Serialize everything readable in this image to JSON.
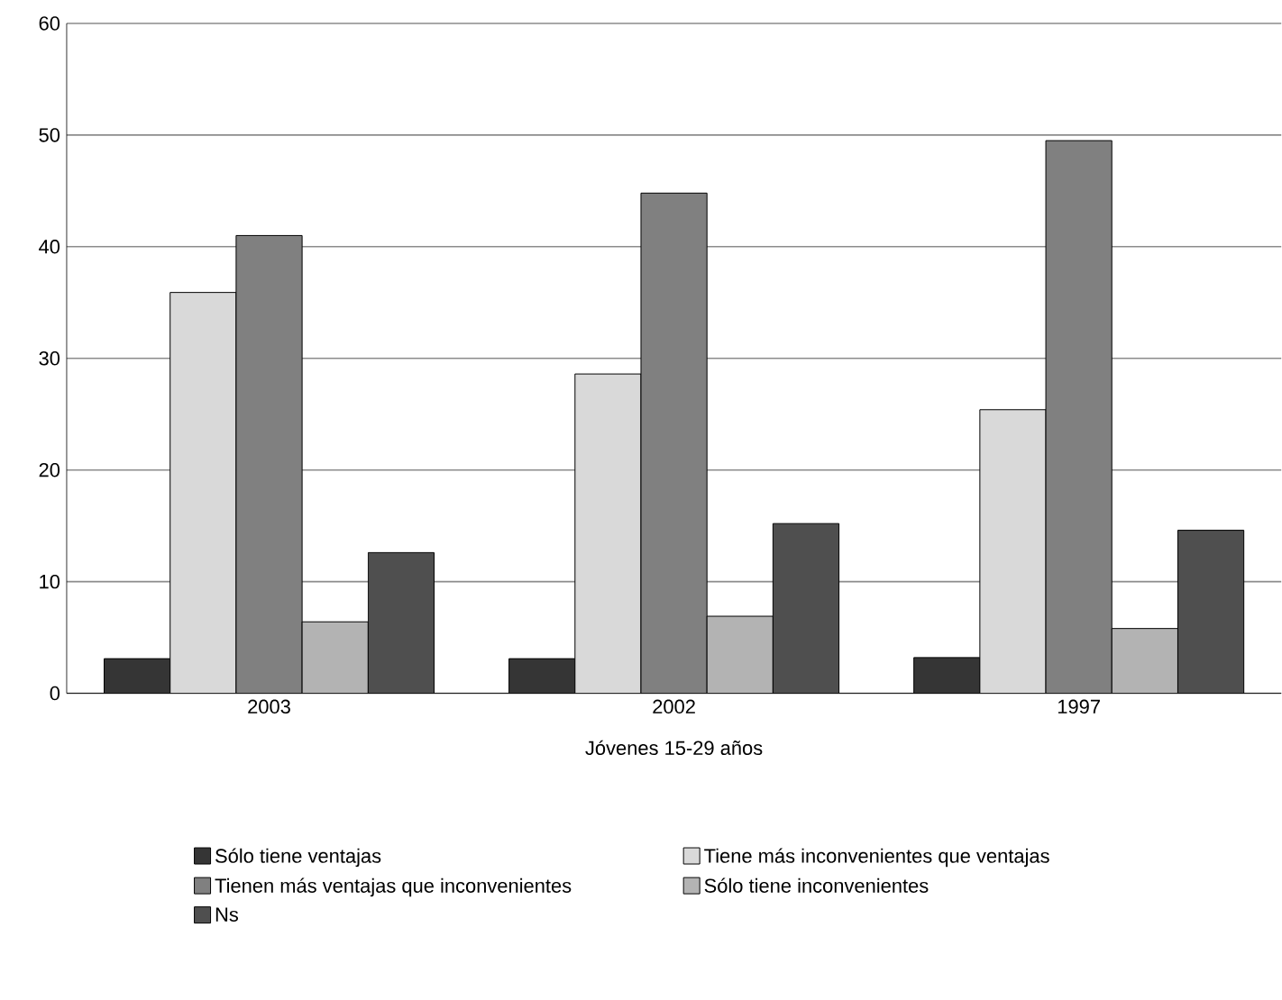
{
  "chart_data": {
    "type": "bar",
    "xlabel": "Jóvenes 15-29 años",
    "categories": [
      "2003",
      "2002",
      "1997"
    ],
    "series": [
      {
        "name": "Sólo tiene ventajas",
        "color": "#353535",
        "values": [
          3.1,
          3.1,
          3.2
        ]
      },
      {
        "name": "Tiene más inconvenientes que ventajas",
        "color": "#d9d9d9",
        "values": [
          35.9,
          28.6,
          25.4
        ]
      },
      {
        "name": "Tienen más ventajas que inconvenientes",
        "color": "#808080",
        "values": [
          41.0,
          44.8,
          49.5
        ]
      },
      {
        "name": "Sólo tiene inconvenientes",
        "color": "#b3b3b3",
        "values": [
          6.4,
          6.9,
          5.8
        ]
      },
      {
        "name": "Ns",
        "color": "#4f4f4f",
        "values": [
          12.6,
          15.2,
          14.6
        ]
      }
    ],
    "ylim": [
      0,
      60
    ],
    "yticks": [
      0,
      10,
      20,
      30,
      40,
      50,
      60
    ],
    "grid": "y",
    "legend": "bottom"
  }
}
